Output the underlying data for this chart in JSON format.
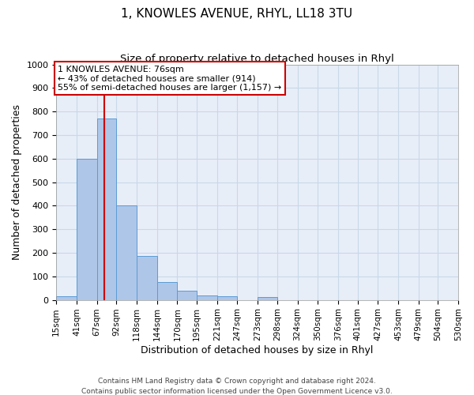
{
  "title": "1, KNOWLES AVENUE, RHYL, LL18 3TU",
  "subtitle": "Size of property relative to detached houses in Rhyl",
  "xlabel": "Distribution of detached houses by size in Rhyl",
  "ylabel": "Number of detached properties",
  "bar_edges": [
    15,
    41,
    67,
    92,
    118,
    144,
    170,
    195,
    221,
    247,
    273,
    298,
    324,
    350,
    376,
    401,
    427,
    453,
    479,
    504,
    530
  ],
  "bar_heights": [
    15,
    600,
    770,
    400,
    185,
    75,
    40,
    18,
    15,
    0,
    12,
    0,
    0,
    0,
    0,
    0,
    0,
    0,
    0,
    0
  ],
  "bar_color": "#aec6e8",
  "bar_edge_color": "#5b9bd5",
  "property_line_x": 76,
  "property_line_color": "#cc0000",
  "ylim": [
    0,
    1000
  ],
  "yticks": [
    0,
    100,
    200,
    300,
    400,
    500,
    600,
    700,
    800,
    900,
    1000
  ],
  "grid_color": "#c8d8e8",
  "background_color": "#e8eef8",
  "annotation_title": "1 KNOWLES AVENUE: 76sqm",
  "annotation_line1": "← 43% of detached houses are smaller (914)",
  "annotation_line2": "55% of semi-detached houses are larger (1,157) →",
  "annotation_box_color": "#cc0000",
  "footer_line1": "Contains HM Land Registry data © Crown copyright and database right 2024.",
  "footer_line2": "Contains public sector information licensed under the Open Government Licence v3.0.",
  "tick_labels": [
    "15sqm",
    "41sqm",
    "67sqm",
    "92sqm",
    "118sqm",
    "144sqm",
    "170sqm",
    "195sqm",
    "221sqm",
    "247sqm",
    "273sqm",
    "298sqm",
    "324sqm",
    "350sqm",
    "376sqm",
    "401sqm",
    "427sqm",
    "453sqm",
    "479sqm",
    "504sqm",
    "530sqm"
  ]
}
